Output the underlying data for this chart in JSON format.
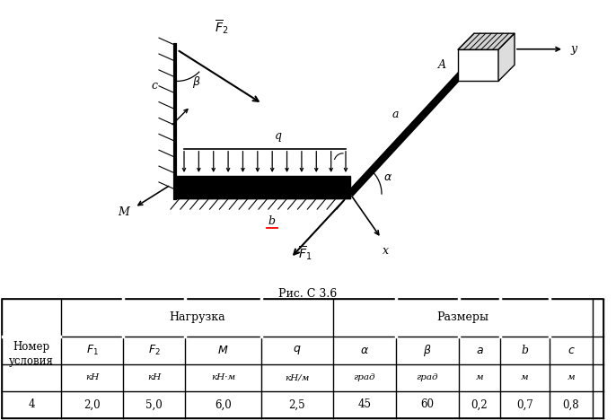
{
  "title": "Рис. С 3.6",
  "bg_color": "#ffffff",
  "table": {
    "data_row": [
      "4",
      "2,0",
      "5,0",
      "6,0",
      "2,5",
      "45",
      "60",
      "0,2",
      "0,7",
      "0,8"
    ]
  }
}
